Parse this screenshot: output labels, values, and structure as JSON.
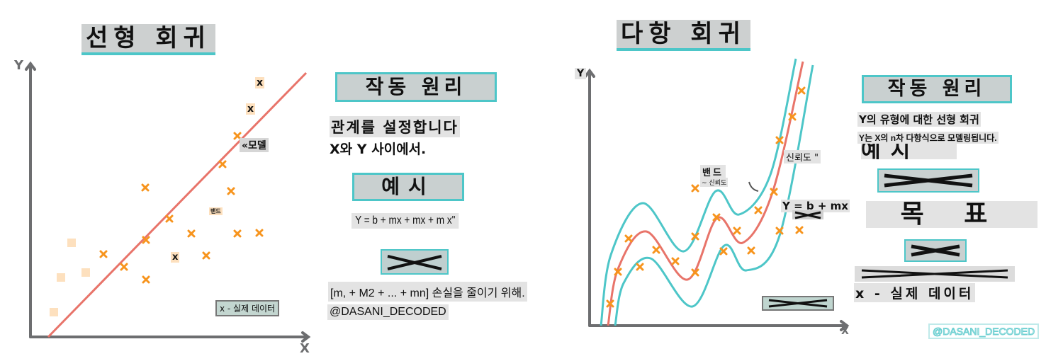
{
  "linear": {
    "title": "선형 회귀",
    "y_axis": "Y",
    "x_axis": "X",
    "model_label": "«모델",
    "band_label": "밴드",
    "marker_labels": [
      "x",
      "x",
      "x"
    ],
    "legend": "x - 실제 데이터",
    "how_title": "작동 원리",
    "desc_line1": "관계를 설정합니다",
    "desc_line2": "X와 Y 사이에서.",
    "example_title": "예시",
    "formula": "Y = b + mx + mx + m x\"",
    "goal_text": "[m, + M2 + ... + mn] 손실을 줄이기 위해.",
    "credit": "@DASANI_DECODED"
  },
  "polynomial": {
    "title": "다항 회귀",
    "y_axis": "Y",
    "x_axis": "X",
    "band_label": "밴드",
    "band_sub": "~ 신뢰도",
    "confidence_label": "신뢰도 \"",
    "formula": "Y = b + mx",
    "how_title": "작동 원리",
    "desc_line1": "Y의 유형에 대한 선형 회귀",
    "desc_line2": "Y는 X의 n차 다항식으로 모델링됩니다.",
    "example_title": "예시",
    "goal_title": "목 표",
    "legend": "x - 실제 데이터",
    "credit": "@DASANI_DECODED"
  },
  "colors": {
    "model_line": "#e8746a",
    "band_line": "#4dc6c8",
    "data_marker": "#f7941d",
    "axis": "#6d6e70",
    "label_box": "#c9d0d0",
    "accent": "#4dc6c8"
  }
}
